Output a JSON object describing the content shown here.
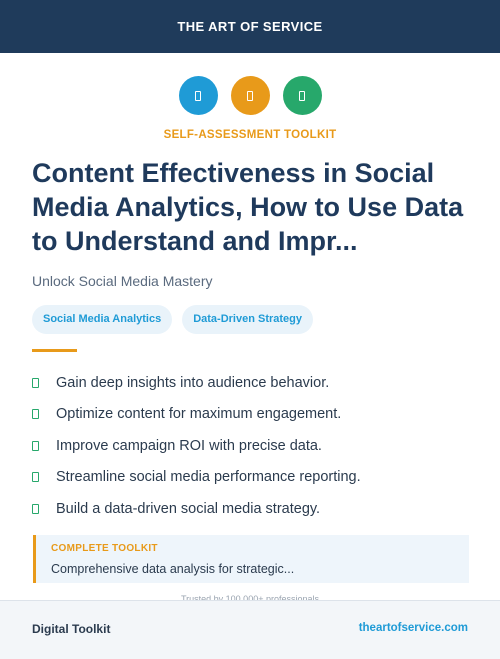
{
  "header": {
    "brand": "THE ART OF SERVICE"
  },
  "icons": [
    {
      "name": "document-icon",
      "color": "#1f9bd6"
    },
    {
      "name": "document-icon",
      "color": "#e89a1a"
    },
    {
      "name": "document-icon",
      "color": "#27a86b"
    }
  ],
  "kicker": "SELF-ASSESSMENT TOOLKIT",
  "title": "Content Effectiveness in Social Media Analytics, How to Use Data to Understand and Impr...",
  "subtitle": "Unlock Social Media Mastery",
  "tags": [
    "Social Media Analytics",
    "Data-Driven Strategy"
  ],
  "bullets": [
    "Gain deep insights into audience behavior.",
    "Optimize content for maximum engagement.",
    "Improve campaign ROI with precise data.",
    "Streamline social media performance reporting.",
    "Build a data-driven social media strategy."
  ],
  "callout": {
    "title": "COMPLETE TOOLKIT",
    "text": "Comprehensive data analysis for strategic..."
  },
  "trusted": "Trusted by 100,000+ professionals",
  "footer": {
    "left": "Digital Toolkit",
    "right": "theartofservice.com"
  }
}
